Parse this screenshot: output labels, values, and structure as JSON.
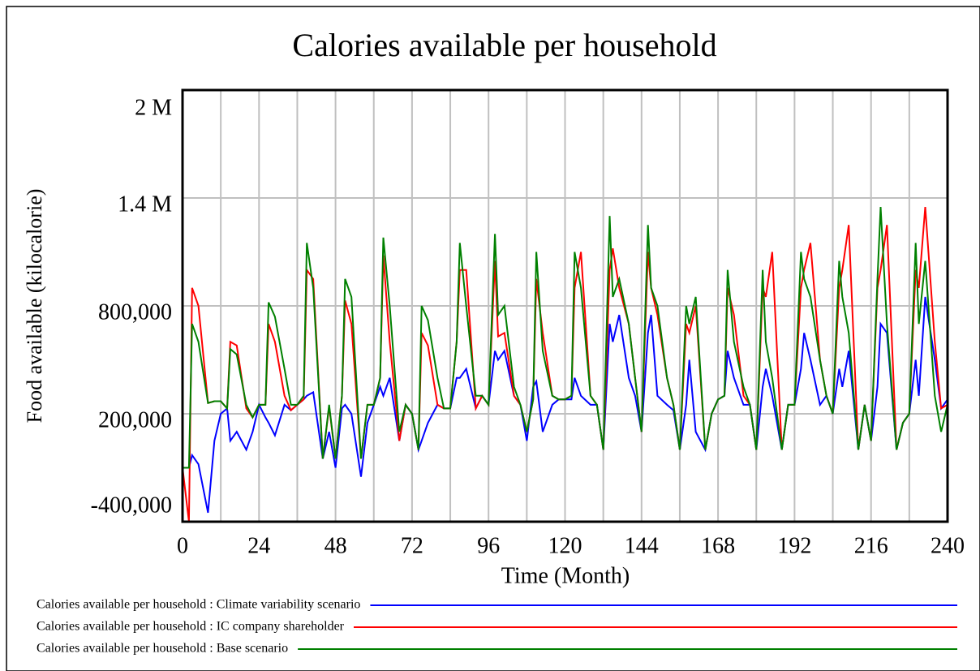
{
  "chart_data": {
    "type": "line",
    "title": "Calories available per household",
    "x_label": "Time (Month)",
    "y_label": "Food available (kilocalorie)",
    "xlim": [
      0,
      240
    ],
    "xticks": [
      0,
      24,
      48,
      72,
      96,
      120,
      144,
      168,
      192,
      216,
      240
    ],
    "xgrid": [
      0,
      12,
      24,
      36,
      48,
      60,
      72,
      84,
      96,
      108,
      120,
      132,
      144,
      156,
      168,
      180,
      192,
      204,
      216,
      228,
      240
    ],
    "ylim": [
      -400000,
      2000000
    ],
    "yticks": [
      {
        "value": -400000,
        "label": "-400,000"
      },
      {
        "value": 200000,
        "label": "200,000"
      },
      {
        "value": 800000,
        "label": "800,000"
      },
      {
        "value": 1400000,
        "label": "1.4 M"
      },
      {
        "value": 2000000,
        "label": "2 M"
      }
    ],
    "grid": true,
    "x": [
      0,
      2,
      3,
      5,
      8,
      10,
      12,
      14,
      15,
      17,
      20,
      22,
      24,
      26,
      27,
      29,
      32,
      34,
      36,
      38,
      39,
      41,
      44,
      46,
      48,
      50,
      51,
      53,
      56,
      58,
      60,
      62,
      63,
      65,
      68,
      70,
      72,
      74,
      75,
      77,
      80,
      82,
      84,
      86,
      87,
      89,
      92,
      94,
      96,
      98,
      99,
      101,
      104,
      106,
      108,
      110,
      111,
      113,
      116,
      118,
      120,
      122,
      123,
      125,
      128,
      130,
      132,
      134,
      135,
      137,
      140,
      142,
      144,
      146,
      147,
      149,
      152,
      154,
      156,
      158,
      159,
      161,
      164,
      166,
      168,
      170,
      171,
      173,
      176,
      178,
      180,
      182,
      183,
      185,
      188,
      190,
      192,
      194,
      195,
      197,
      200,
      202,
      204,
      206,
      207,
      209,
      212,
      214,
      216,
      218,
      219,
      221,
      224,
      226,
      228,
      230,
      231,
      233,
      236,
      238,
      240
    ],
    "series": [
      {
        "name": "Calories available per household : Climate variability scenario",
        "color": "#0000ff",
        "values": [
          -100000,
          -100000,
          -30000,
          -80000,
          -350000,
          50000,
          200000,
          230000,
          50000,
          100000,
          0,
          100000,
          250000,
          180000,
          150000,
          80000,
          250000,
          220000,
          250000,
          280000,
          300000,
          320000,
          -50000,
          100000,
          -100000,
          230000,
          250000,
          200000,
          -150000,
          150000,
          250000,
          350000,
          300000,
          400000,
          50000,
          250000,
          200000,
          0,
          50000,
          150000,
          250000,
          230000,
          230000,
          400000,
          400000,
          450000,
          230000,
          300000,
          250000,
          550000,
          500000,
          550000,
          300000,
          250000,
          50000,
          350000,
          380000,
          100000,
          250000,
          280000,
          280000,
          280000,
          400000,
          300000,
          250000,
          250000,
          0,
          700000,
          600000,
          750000,
          400000,
          300000,
          100000,
          650000,
          750000,
          300000,
          250000,
          220000,
          0,
          250000,
          500000,
          100000,
          0,
          200000,
          280000,
          300000,
          550000,
          400000,
          250000,
          250000,
          0,
          350000,
          450000,
          300000,
          0,
          250000,
          250000,
          450000,
          650000,
          500000,
          250000,
          300000,
          200000,
          450000,
          350000,
          550000,
          0,
          250000,
          50000,
          350000,
          700000,
          650000,
          0,
          150000,
          200000,
          500000,
          300000,
          850000,
          500000,
          230000,
          280000
        ]
      },
      {
        "name": "Calories available per household : IC company shareholder",
        "color": "#ff0000",
        "values": [
          -100000,
          -400000,
          900000,
          800000,
          260000,
          270000,
          270000,
          230000,
          600000,
          580000,
          230000,
          180000,
          250000,
          250000,
          700000,
          600000,
          300000,
          220000,
          250000,
          280000,
          1000000,
          950000,
          -50000,
          240000,
          -50000,
          300000,
          830000,
          700000,
          -50000,
          250000,
          250000,
          400000,
          1080000,
          600000,
          50000,
          250000,
          200000,
          0,
          650000,
          580000,
          250000,
          230000,
          230000,
          600000,
          1000000,
          1000000,
          230000,
          300000,
          250000,
          1050000,
          630000,
          650000,
          300000,
          250000,
          100000,
          280000,
          950000,
          650000,
          300000,
          280000,
          280000,
          300000,
          900000,
          1100000,
          300000,
          250000,
          0,
          1000000,
          1120000,
          900000,
          700000,
          400000,
          100000,
          1100000,
          900000,
          750000,
          400000,
          250000,
          0,
          700000,
          650000,
          800000,
          0,
          200000,
          280000,
          300000,
          900000,
          750000,
          300000,
          250000,
          0,
          900000,
          850000,
          1100000,
          0,
          250000,
          250000,
          900000,
          1000000,
          1150000,
          500000,
          300000,
          200000,
          900000,
          1000000,
          1250000,
          0,
          250000,
          50000,
          900000,
          1000000,
          1250000,
          0,
          150000,
          200000,
          1000000,
          900000,
          1350000,
          600000,
          230000,
          250000
        ]
      },
      {
        "name": "Calories available per household : Base scenario",
        "color": "#008000",
        "values": [
          -100000,
          -100000,
          700000,
          600000,
          260000,
          270000,
          270000,
          230000,
          560000,
          530000,
          250000,
          180000,
          250000,
          250000,
          820000,
          740000,
          450000,
          250000,
          250000,
          300000,
          1150000,
          900000,
          -50000,
          250000,
          -50000,
          300000,
          950000,
          850000,
          -50000,
          250000,
          250000,
          400000,
          1180000,
          800000,
          100000,
          250000,
          200000,
          0,
          800000,
          720000,
          400000,
          230000,
          230000,
          600000,
          1150000,
          800000,
          300000,
          300000,
          250000,
          1200000,
          750000,
          800000,
          350000,
          250000,
          100000,
          280000,
          1100000,
          550000,
          300000,
          280000,
          280000,
          300000,
          1100000,
          900000,
          300000,
          250000,
          0,
          1300000,
          850000,
          950000,
          700000,
          400000,
          100000,
          1250000,
          900000,
          800000,
          400000,
          250000,
          0,
          800000,
          700000,
          850000,
          0,
          200000,
          280000,
          300000,
          1000000,
          600000,
          350000,
          250000,
          0,
          1000000,
          600000,
          400000,
          0,
          250000,
          250000,
          1100000,
          950000,
          850000,
          500000,
          300000,
          200000,
          1050000,
          850000,
          650000,
          0,
          250000,
          50000,
          950000,
          1350000,
          700000,
          0,
          150000,
          200000,
          1150000,
          700000,
          1050000,
          300000,
          100000,
          250000
        ]
      }
    ]
  }
}
